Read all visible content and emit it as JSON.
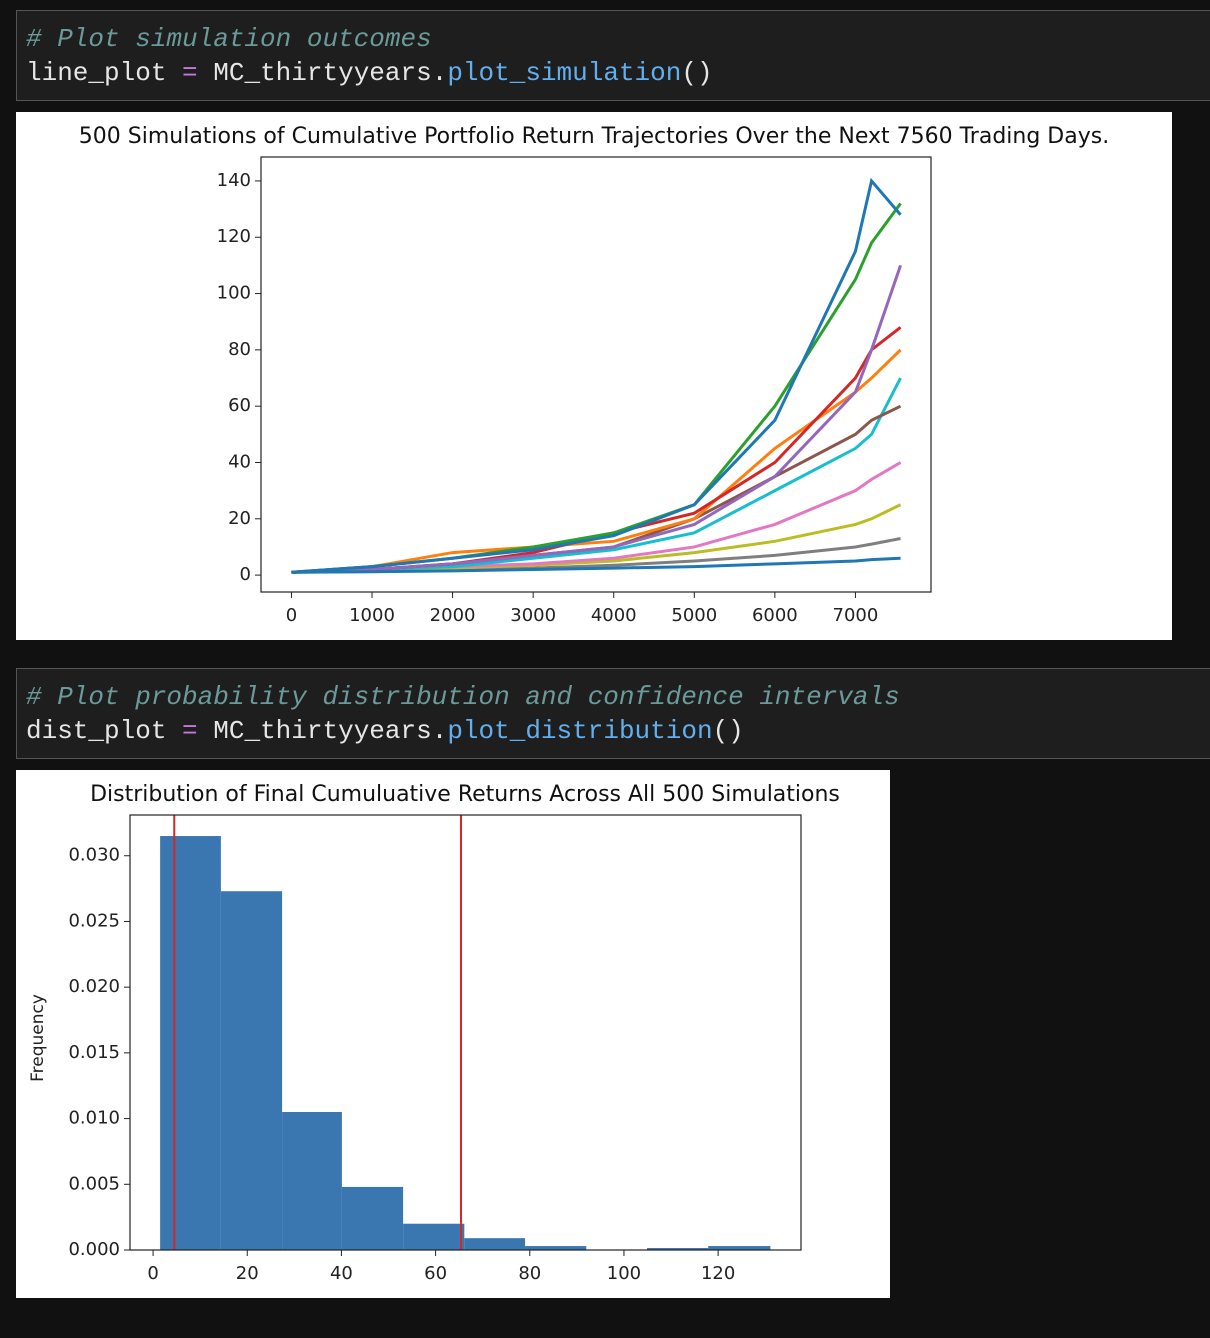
{
  "cells": [
    {
      "comment": "# Plot simulation outcomes",
      "code": [
        "line_plot",
        "=",
        "MC_thirtyyears.",
        "plot_simulation",
        "()"
      ]
    },
    {
      "comment": "# Plot probability distribution and confidence intervals",
      "code": [
        "dist_plot",
        "=",
        "MC_thirtyyears.",
        "plot_distribution",
        "()"
      ]
    }
  ],
  "chart_data": [
    {
      "type": "line",
      "title": "500 Simulations of Cumulative Portfolio Return Trajectories Over the Next 7560 Trading Days.",
      "x": [
        0,
        1000,
        2000,
        3000,
        4000,
        5000,
        6000,
        7000,
        7200,
        7560
      ],
      "series": [
        {
          "color": "#7f7f7f",
          "values": [
            1,
            1.3,
            1.8,
            2.5,
            3.5,
            5,
            7,
            10,
            11,
            13
          ]
        },
        {
          "color": "#bcbd22",
          "values": [
            1,
            1.5,
            2.5,
            3.5,
            5,
            8,
            12,
            18,
            20,
            25
          ]
        },
        {
          "color": "#e377c2",
          "values": [
            1,
            2,
            3,
            4,
            6,
            10,
            18,
            30,
            34,
            40
          ]
        },
        {
          "color": "#17becf",
          "values": [
            1,
            2,
            3,
            6,
            9,
            15,
            30,
            45,
            50,
            70
          ]
        },
        {
          "color": "#8c564b",
          "values": [
            1,
            2,
            4,
            7,
            10,
            20,
            35,
            50,
            55,
            60
          ]
        },
        {
          "color": "#ff7f0e",
          "values": [
            1,
            3,
            8,
            10,
            12,
            20,
            45,
            65,
            70,
            80
          ]
        },
        {
          "color": "#d62728",
          "values": [
            1,
            2,
            4,
            8,
            15,
            22,
            40,
            70,
            80,
            88
          ]
        },
        {
          "color": "#9467bd",
          "values": [
            1,
            2,
            4,
            7,
            10,
            18,
            35,
            65,
            80,
            110
          ]
        },
        {
          "color": "#2ca02c",
          "values": [
            1,
            3,
            6,
            10,
            15,
            25,
            60,
            105,
            118,
            132
          ]
        },
        {
          "color": "#1f77b4",
          "values": [
            1,
            3,
            6,
            9,
            14,
            25,
            55,
            115,
            140,
            128
          ]
        },
        {
          "color": "#1f77b4",
          "values": [
            1,
            1.2,
            1.5,
            2,
            2.5,
            3,
            4,
            5,
            5.5,
            6
          ]
        }
      ],
      "xlim": [
        -378,
        7938
      ],
      "ylim": [
        -6,
        148.5
      ],
      "xticks": [
        0,
        1000,
        2000,
        3000,
        4000,
        5000,
        6000,
        7000
      ],
      "yticks": [
        0,
        20,
        40,
        60,
        80,
        100,
        120,
        140
      ]
    },
    {
      "type": "histogram",
      "title": "Distribution of Final Cumuluative Returns Across All 500 Simulations",
      "ylabel": "Frequency",
      "bins": [
        1.5,
        14.4,
        27.4,
        40.1,
        53.1,
        66.1,
        79.0,
        92.0,
        104.9,
        117.9,
        131.1
      ],
      "values": [
        0.0315,
        0.0273,
        0.0105,
        0.0048,
        0.002,
        0.0009,
        0.0003,
        0,
        0.00015,
        0.0003
      ],
      "color": "#3a76af",
      "vlines": [
        4.5,
        65.4
      ],
      "vline_color": "#d62728",
      "xlim": [
        -4.9,
        137.6
      ],
      "ylim": [
        0,
        0.0331
      ],
      "xticks": [
        0,
        20,
        40,
        60,
        80,
        100,
        120
      ],
      "yticks": [
        {
          "value": 0,
          "label": "0.000"
        },
        {
          "value": 0.005,
          "label": "0.005"
        },
        {
          "value": 0.01,
          "label": "0.010"
        },
        {
          "value": 0.015,
          "label": "0.015"
        },
        {
          "value": 0.02,
          "label": "0.020"
        },
        {
          "value": 0.025,
          "label": "0.025"
        },
        {
          "value": 0.03,
          "label": "0.030"
        }
      ]
    }
  ]
}
